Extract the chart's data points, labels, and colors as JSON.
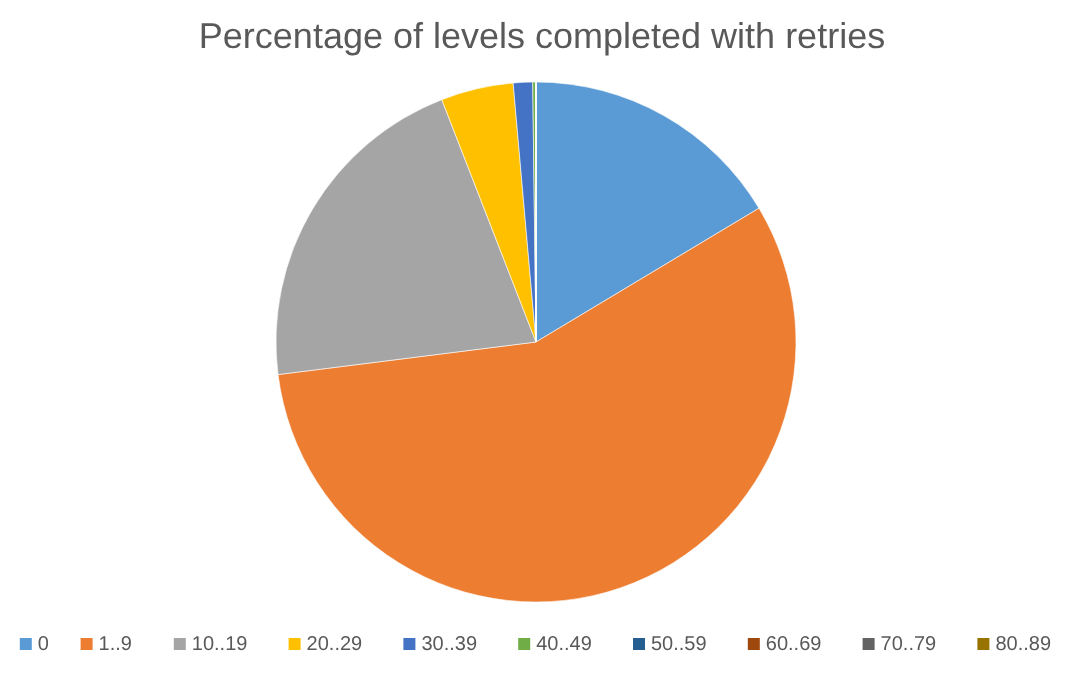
{
  "chart_data": {
    "type": "pie",
    "title": "Percentage of levels completed with retries",
    "categories": [
      "0",
      "1..9",
      "10..19",
      "20..29",
      "30..39",
      "40..49",
      "50..59",
      "60..69",
      "70..79",
      "80..89"
    ],
    "values": [
      16.4,
      56.6,
      21.1,
      4.5,
      1.2,
      0.2,
      0,
      0,
      0,
      0
    ],
    "colors": [
      "#5b9bd5",
      "#ed7d31",
      "#a5a5a5",
      "#ffc000",
      "#4472c4",
      "#70ad47",
      "#255e91",
      "#9e480e",
      "#636363",
      "#997300"
    ],
    "legend": "bottom"
  }
}
